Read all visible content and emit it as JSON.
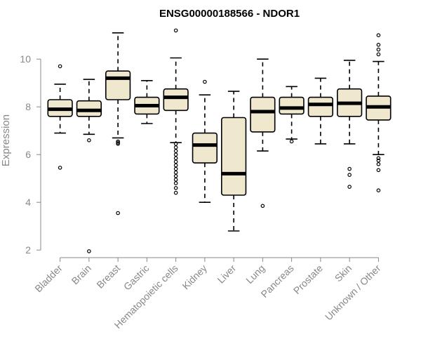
{
  "chart_data": {
    "type": "boxplot",
    "title": "ENSG00000188566 - NDOR1",
    "xlabel": "",
    "ylabel": "Expression",
    "ylim": [
      1.8,
      11.3
    ],
    "yticks": [
      2,
      4,
      6,
      8,
      10
    ],
    "grid": false,
    "colors": {
      "box_fill": "#efe8cf",
      "box_stroke": "#000000",
      "axis": "#888888"
    },
    "categories": [
      "Bladder",
      "Brain",
      "Breast",
      "Gastric",
      "Hematopoietic cells",
      "Kidney",
      "Liver",
      "Lung",
      "Pancreas",
      "Prostate",
      "Skin",
      "Unknown / Other"
    ],
    "boxes": [
      {
        "category": "Bladder",
        "whisker_low": 6.9,
        "q1": 7.6,
        "median": 7.9,
        "q3": 8.3,
        "whisker_high": 8.95,
        "outliers": [
          9.7,
          5.45
        ]
      },
      {
        "category": "Brain",
        "whisker_low": 6.85,
        "q1": 7.6,
        "median": 7.85,
        "q3": 8.25,
        "whisker_high": 9.15,
        "outliers": [
          6.6,
          1.95
        ]
      },
      {
        "category": "Breast",
        "whisker_low": 6.7,
        "q1": 8.3,
        "median": 9.2,
        "q3": 9.5,
        "whisker_high": 11.1,
        "outliers": [
          6.5,
          6.45,
          6.55,
          3.55
        ]
      },
      {
        "category": "Gastric",
        "whisker_low": 7.3,
        "q1": 7.7,
        "median": 8.05,
        "q3": 8.4,
        "whisker_high": 9.1,
        "outliers": []
      },
      {
        "category": "Hematopoietic cells",
        "whisker_low": 6.5,
        "q1": 7.85,
        "median": 8.4,
        "q3": 8.75,
        "whisker_high": 10.05,
        "outliers": [
          11.2,
          6.45,
          6.3,
          6.15,
          6.0,
          5.85,
          5.7,
          5.55,
          5.4,
          5.25,
          5.1,
          4.95,
          4.8,
          4.6,
          4.4
        ]
      },
      {
        "category": "Kidney",
        "whisker_low": 4.0,
        "q1": 5.65,
        "median": 6.4,
        "q3": 6.9,
        "whisker_high": 8.5,
        "outliers": [
          9.05
        ]
      },
      {
        "category": "Liver",
        "whisker_low": 2.8,
        "q1": 4.3,
        "median": 5.2,
        "q3": 7.55,
        "whisker_high": 8.65,
        "outliers": []
      },
      {
        "category": "Lung",
        "whisker_low": 6.15,
        "q1": 6.95,
        "median": 7.8,
        "q3": 8.4,
        "whisker_high": 10.0,
        "outliers": [
          3.85
        ]
      },
      {
        "category": "Pancreas",
        "whisker_low": 6.65,
        "q1": 7.7,
        "median": 7.95,
        "q3": 8.4,
        "whisker_high": 8.85,
        "outliers": [
          6.55
        ]
      },
      {
        "category": "Prostate",
        "whisker_low": 6.45,
        "q1": 7.6,
        "median": 8.1,
        "q3": 8.4,
        "whisker_high": 9.2,
        "outliers": []
      },
      {
        "category": "Skin",
        "whisker_low": 6.45,
        "q1": 7.6,
        "median": 8.15,
        "q3": 8.75,
        "whisker_high": 9.95,
        "outliers": [
          5.4,
          5.15,
          4.65
        ]
      },
      {
        "category": "Unknown / Other",
        "whisker_low": 6.0,
        "q1": 7.45,
        "median": 8.0,
        "q3": 8.45,
        "whisker_high": 9.9,
        "outliers": [
          11.0,
          10.6,
          10.4,
          10.2,
          5.85,
          5.75,
          5.6,
          5.35,
          4.5
        ]
      }
    ]
  }
}
